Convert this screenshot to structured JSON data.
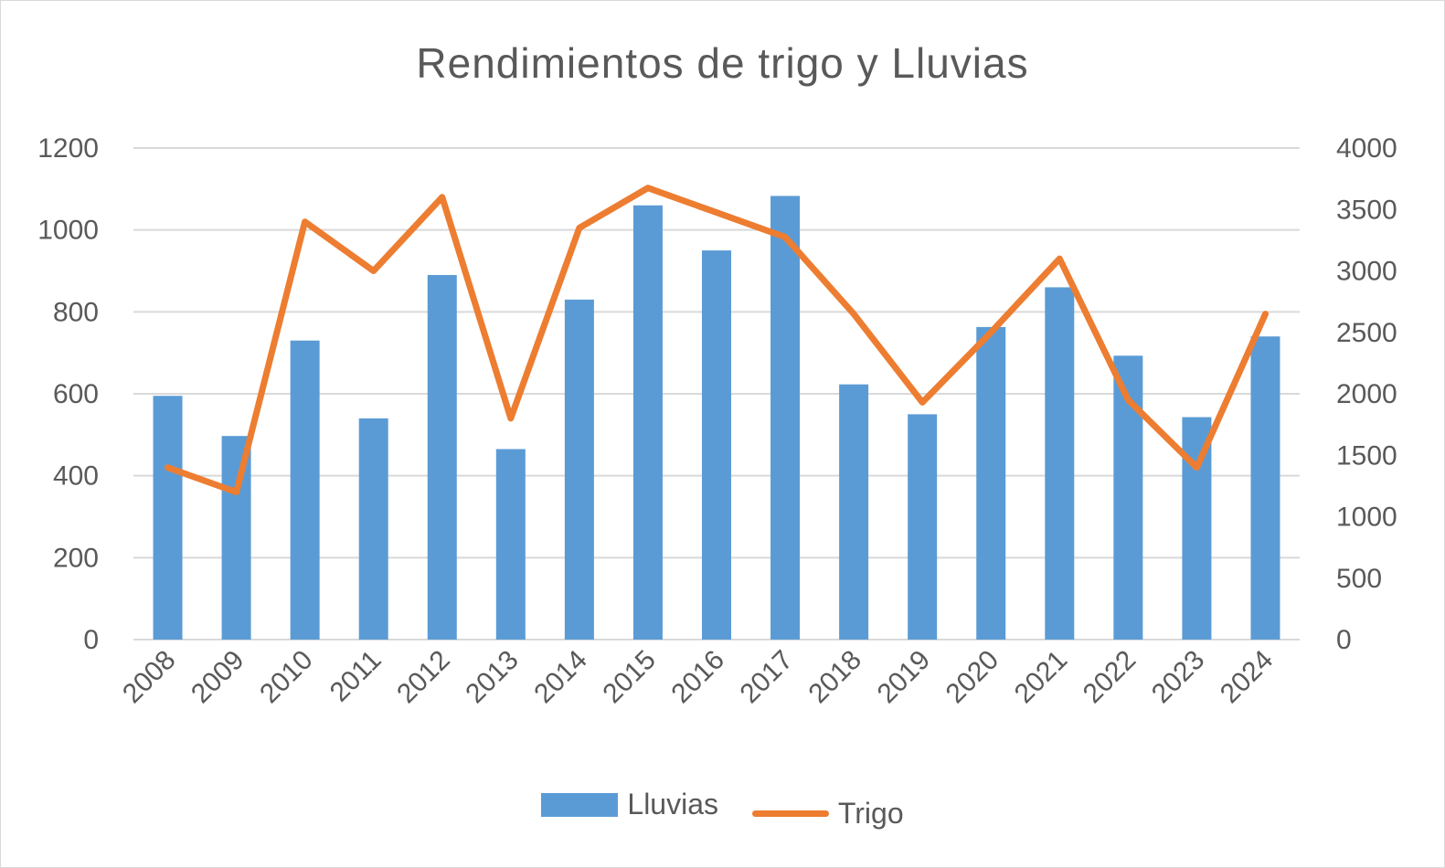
{
  "chart_data": {
    "type": "bar",
    "title": "Rendimientos de trigo y Lluvias",
    "categories": [
      "2008",
      "2009",
      "2010",
      "2011",
      "2012",
      "2013",
      "2014",
      "2015",
      "2016",
      "2017",
      "2018",
      "2019",
      "2020",
      "2021",
      "2022",
      "2023",
      "2024"
    ],
    "series": [
      {
        "name": "Lluvias",
        "type": "bar",
        "axis": "left",
        "color": "#5b9bd5",
        "values": [
          595,
          497,
          730,
          540,
          890,
          465,
          830,
          1060,
          950,
          1083,
          623,
          550,
          763,
          860,
          693,
          543,
          740
        ]
      },
      {
        "name": "Trigo",
        "type": "line",
        "axis": "right",
        "color": "#ed7d31",
        "values": [
          1400,
          1200,
          3400,
          3000,
          3600,
          1800,
          3350,
          3675,
          3475,
          3275,
          2650,
          1930,
          2500,
          3100,
          1950,
          1400,
          2650
        ]
      }
    ],
    "y_left": {
      "min": 0,
      "max": 1200,
      "ticks": [
        0,
        200,
        400,
        600,
        800,
        1000,
        1200
      ]
    },
    "y_right": {
      "min": 0,
      "max": 4000,
      "ticks": [
        0,
        500,
        1000,
        1500,
        2000,
        2500,
        3000,
        3500,
        4000
      ]
    },
    "grid": true,
    "legend_position": "bottom"
  }
}
